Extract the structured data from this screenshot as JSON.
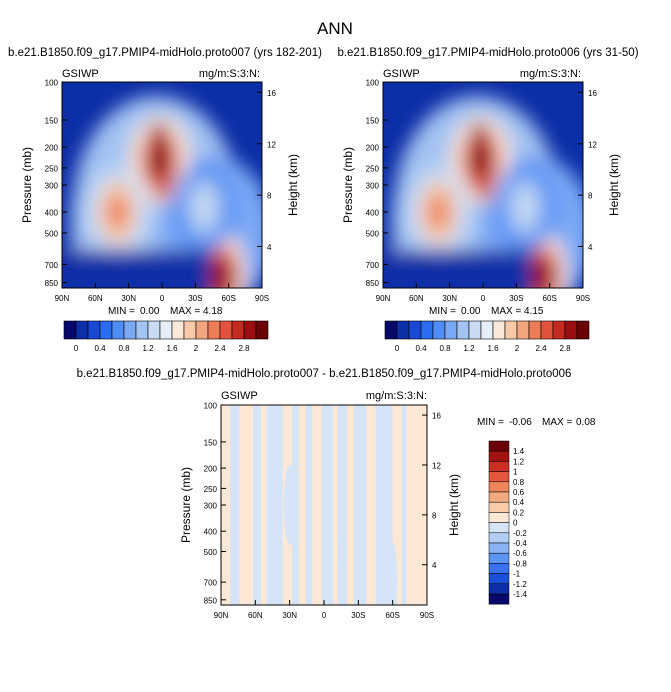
{
  "page_title": "ANN",
  "colormap_levels": [
    "#08086b",
    "#0c2ea6",
    "#1848d4",
    "#2a6df0",
    "#4f8cf5",
    "#7aa8f5",
    "#a3c3f2",
    "#c9dbf4",
    "#e6eefa",
    "#fbe8d8",
    "#f7c9a8",
    "#f2a57e",
    "#ee7c56",
    "#e3523a",
    "#c42a20",
    "#9b0f10",
    "#6b0306"
  ],
  "diff_colors": [
    "#08086b",
    "#0c2ea6",
    "#1a50d8",
    "#3773ef",
    "#5e94f4",
    "#8ab1f4",
    "#b2cdf4",
    "#d5e4f7",
    "#fde8d6",
    "#f8cca9",
    "#f3aa7f",
    "#ee8459",
    "#e4573c",
    "#c93023",
    "#a01310",
    "#6b0306"
  ],
  "chart_data": [
    {
      "type": "heatmap",
      "title": "b.e21.B1850.f09_g17.PMIP4-midHolo.proto007 (yrs 182-201)",
      "left_string": "GSIWP",
      "right_string": "mg/m:S:3:N:",
      "xlabel": "",
      "ylabel": "Pressure (mb)",
      "ylabel_right": "Height (km)",
      "x_ticks": [
        "90N",
        "60N",
        "30N",
        "0",
        "30S",
        "60S",
        "90S"
      ],
      "y_ticks": [
        "100",
        "150",
        "200",
        "250",
        "300",
        "400",
        "500",
        "700",
        "850"
      ],
      "y_right_ticks": [
        "16",
        "12",
        "8",
        "4"
      ],
      "stats": {
        "min_label": "MIN =",
        "min": "0.00",
        "max_label": "MAX =",
        "max": "4.18"
      },
      "colorbar_labels": [
        "0",
        "0.4",
        "0.8",
        "1.2",
        "1.6",
        "2",
        "2.4",
        "2.8"
      ],
      "colorbar_levels": [
        0,
        0.2,
        0.4,
        0.6,
        0.8,
        1.0,
        1.2,
        1.4,
        1.6,
        1.8,
        2.0,
        2.2,
        2.4,
        2.6,
        2.8
      ],
      "features": [
        {
          "lat": 2,
          "p": 230,
          "value": 3.0
        },
        {
          "lat": 40,
          "p": 400,
          "value": 2.3
        },
        {
          "lat": -55,
          "p": 800,
          "value": 2.9
        },
        {
          "lat": -38,
          "p": 380,
          "value": 1.2
        }
      ]
    },
    {
      "type": "heatmap",
      "title": "b.e21.B1850.f09_g17.PMIP4-midHolo.proto006 (yrs 31-50)",
      "left_string": "GSIWP",
      "right_string": "mg/m:S:3:N:",
      "xlabel": "",
      "ylabel": "Pressure (mb)",
      "ylabel_right": "Height (km)",
      "x_ticks": [
        "90N",
        "60N",
        "30N",
        "0",
        "30S",
        "60S",
        "90S"
      ],
      "y_ticks": [
        "100",
        "150",
        "200",
        "250",
        "300",
        "400",
        "500",
        "700",
        "850"
      ],
      "y_right_ticks": [
        "16",
        "12",
        "8",
        "4"
      ],
      "stats": {
        "min_label": "MIN =",
        "min": "0.00",
        "max_label": "MAX =",
        "max": "4.15"
      },
      "colorbar_labels": [
        "0",
        "0.4",
        "0.8",
        "1.2",
        "1.6",
        "2",
        "2.4",
        "2.8"
      ],
      "colorbar_levels": [
        0,
        0.2,
        0.4,
        0.6,
        0.8,
        1.0,
        1.2,
        1.4,
        1.6,
        1.8,
        2.0,
        2.2,
        2.4,
        2.6,
        2.8
      ],
      "features": [
        {
          "lat": 2,
          "p": 230,
          "value": 3.0
        },
        {
          "lat": 40,
          "p": 400,
          "value": 2.3
        },
        {
          "lat": -55,
          "p": 800,
          "value": 2.9
        },
        {
          "lat": -38,
          "p": 380,
          "value": 1.2
        }
      ]
    },
    {
      "type": "heatmap",
      "title": "b.e21.B1850.f09_g17.PMIP4-midHolo.proto007 - b.e21.B1850.f09_g17.PMIP4-midHolo.proto006",
      "left_string": "GSIWP",
      "right_string": "mg/m:S:3:N:",
      "xlabel": "",
      "ylabel": "Pressure (mb)",
      "ylabel_right": "Height (km)",
      "x_ticks": [
        "90N",
        "60N",
        "30N",
        "0",
        "30S",
        "60S",
        "90S"
      ],
      "y_ticks": [
        "100",
        "150",
        "200",
        "250",
        "300",
        "400",
        "500",
        "700",
        "850"
      ],
      "y_right_ticks": [
        "16",
        "12",
        "8",
        "4"
      ],
      "stats": {
        "min_label": "MIN =",
        "min": "-0.06",
        "max_label": "MAX =",
        "max": "0.08"
      },
      "colorbar_labels": [
        "1.4",
        "1.2",
        "1",
        "0.8",
        "0.6",
        "0.4",
        "0.2",
        "0",
        "-0.2",
        "-0.4",
        "-0.6",
        "-0.8",
        "-1",
        "-1.2",
        "-1.4"
      ],
      "value_range": [
        -0.06,
        0.08
      ]
    }
  ]
}
